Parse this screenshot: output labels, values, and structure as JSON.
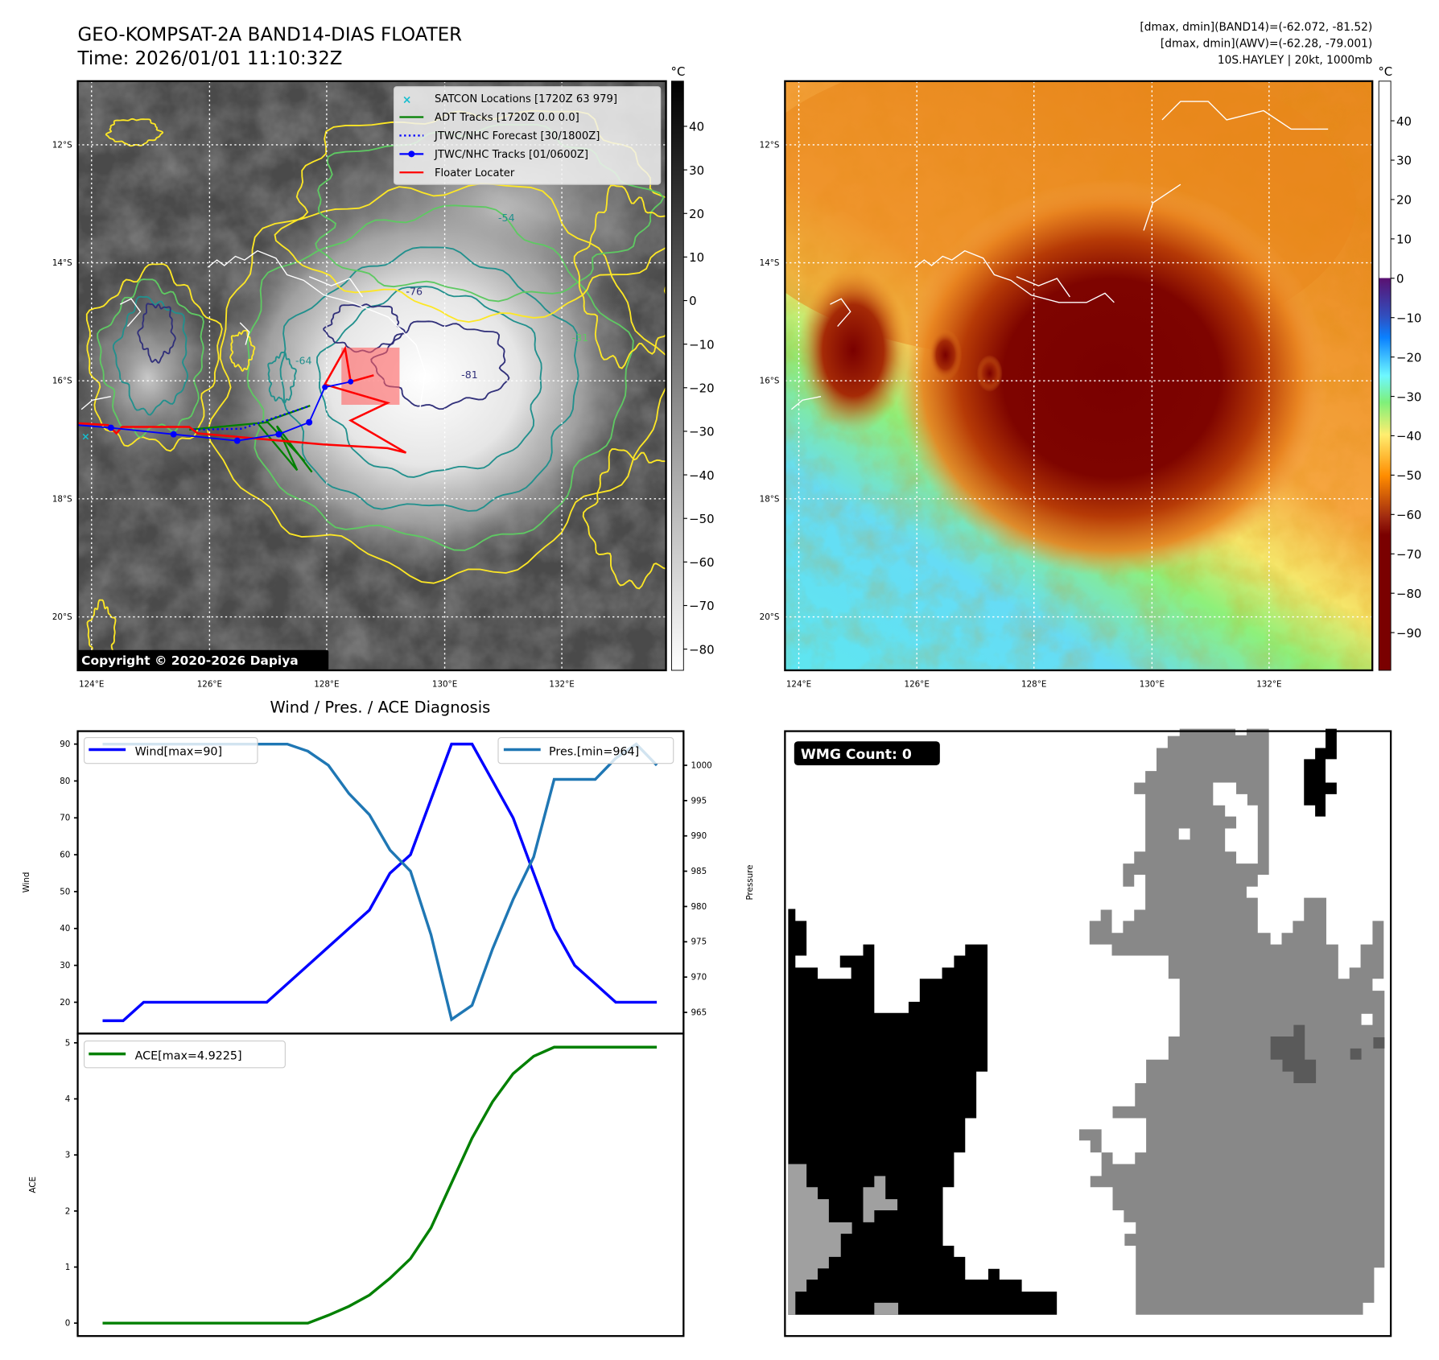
{
  "figure": {
    "title_line1": "GEO-KOMPSAT-2A BAND14-DIAS FLOATER",
    "title_line2": "Time: 2026/01/01 11:10:32Z",
    "info_line1": "[dmax, dmin](BAND14)=(-62.072, -81.52)",
    "info_line2": "[dmax, dmin](AWV)=(-62.28, -79.001)",
    "info_line3": "10S.HAYLEY | 20kt, 1000mb"
  },
  "maps": {
    "lat_labels": [
      "12°S",
      "14°S",
      "16°S",
      "18°S",
      "20°S"
    ],
    "lon_labels": [
      "124°E",
      "126°E",
      "128°E",
      "130°E",
      "132°E"
    ],
    "colorbar_unit": "°C",
    "left_colorbar_ticks": [
      "40",
      "30",
      "20",
      "10",
      "0",
      "−10",
      "−20",
      "−30",
      "−40",
      "−50",
      "−60",
      "−70",
      "−80"
    ],
    "right_colorbar_ticks": [
      "40",
      "30",
      "20",
      "10",
      "0",
      "−10",
      "−20",
      "−30",
      "−40",
      "−50",
      "−60",
      "−70",
      "−80",
      "−90"
    ],
    "copyright": "Copyright © 2020-2026 Dapiya",
    "contour_labels": [
      "-31",
      "-54",
      "-64",
      "-76",
      "-81"
    ],
    "legend": [
      {
        "label": "SATCON Locations [1720Z 63 979]",
        "color": "#17becf",
        "style": "x-marker"
      },
      {
        "label": "ADT Tracks [1720Z 0.0 0.0]",
        "color": "#008000",
        "style": "line"
      },
      {
        "label": "JTWC/NHC Forecast [30/1800Z]",
        "color": "#0000ff",
        "style": "dotted"
      },
      {
        "label": "JTWC/NHC Tracks [01/0600Z]",
        "color": "#0000ff",
        "style": "line-dot"
      },
      {
        "label": "Floater Locater",
        "color": "#ff0000",
        "style": "line"
      }
    ]
  },
  "wmg": {
    "label": "WMG Count: 0"
  },
  "chart_data": [
    {
      "type": "line",
      "title": "Wind / Pres. / ACE Diagnosis",
      "x": [
        0,
        1,
        2,
        3,
        4,
        5,
        6,
        7,
        8,
        9,
        10,
        11,
        12,
        13,
        14,
        15,
        16,
        17,
        18,
        19,
        20,
        21,
        22,
        23,
        24,
        25,
        26,
        27
      ],
      "ylabel": "Wind",
      "y2label": "Pressure",
      "ylim": [
        13.5,
        93.5
      ],
      "y2lim": [
        963,
        1004.7
      ],
      "yticks": [
        20,
        30,
        40,
        50,
        60,
        70,
        80,
        90
      ],
      "y2ticks": [
        965,
        970,
        975,
        980,
        985,
        990,
        995,
        1000
      ],
      "series": [
        {
          "name": "Wind[max=90]",
          "axis": "left",
          "color": "#0000ff",
          "values": [
            15,
            15,
            20,
            20,
            20,
            20,
            20,
            20,
            20,
            25,
            30,
            35,
            40,
            45,
            55,
            60,
            75,
            90,
            90,
            80,
            70,
            55,
            40,
            30,
            25,
            20,
            20,
            20
          ]
        },
        {
          "name": "Pres.[min=964]",
          "axis": "right",
          "color": "#1f77b4",
          "values": [
            1003,
            1003,
            1003,
            1003,
            1003,
            1003,
            1003,
            1003,
            1003,
            1003,
            1002,
            1000,
            996,
            993,
            988,
            985,
            976,
            964,
            966,
            974,
            981,
            987,
            998,
            998,
            998,
            1001,
            1003,
            1000
          ]
        }
      ],
      "legend": [
        "top-left",
        "top-right"
      ]
    },
    {
      "type": "line",
      "x": [
        0,
        1,
        2,
        3,
        4,
        5,
        6,
        7,
        8,
        9,
        10,
        11,
        12,
        13,
        14,
        15,
        16,
        17,
        18,
        19,
        20,
        21,
        22,
        23,
        24,
        25,
        26,
        27
      ],
      "ylabel": "ACE",
      "ylim": [
        -0.25,
        5.05
      ],
      "yticks": [
        0,
        1,
        2,
        3,
        4,
        5
      ],
      "series": [
        {
          "name": "ACE[max=4.9225]",
          "color": "#008000",
          "values": [
            0,
            0,
            0,
            0,
            0,
            0,
            0,
            0,
            0,
            0,
            0,
            0.14,
            0.3,
            0.5,
            0.8,
            1.15,
            1.7,
            2.5,
            3.3,
            3.95,
            4.45,
            4.76,
            4.9225,
            4.9225,
            4.9225,
            4.9225,
            4.9225,
            4.9225
          ]
        }
      ],
      "legend": "top-left"
    }
  ]
}
